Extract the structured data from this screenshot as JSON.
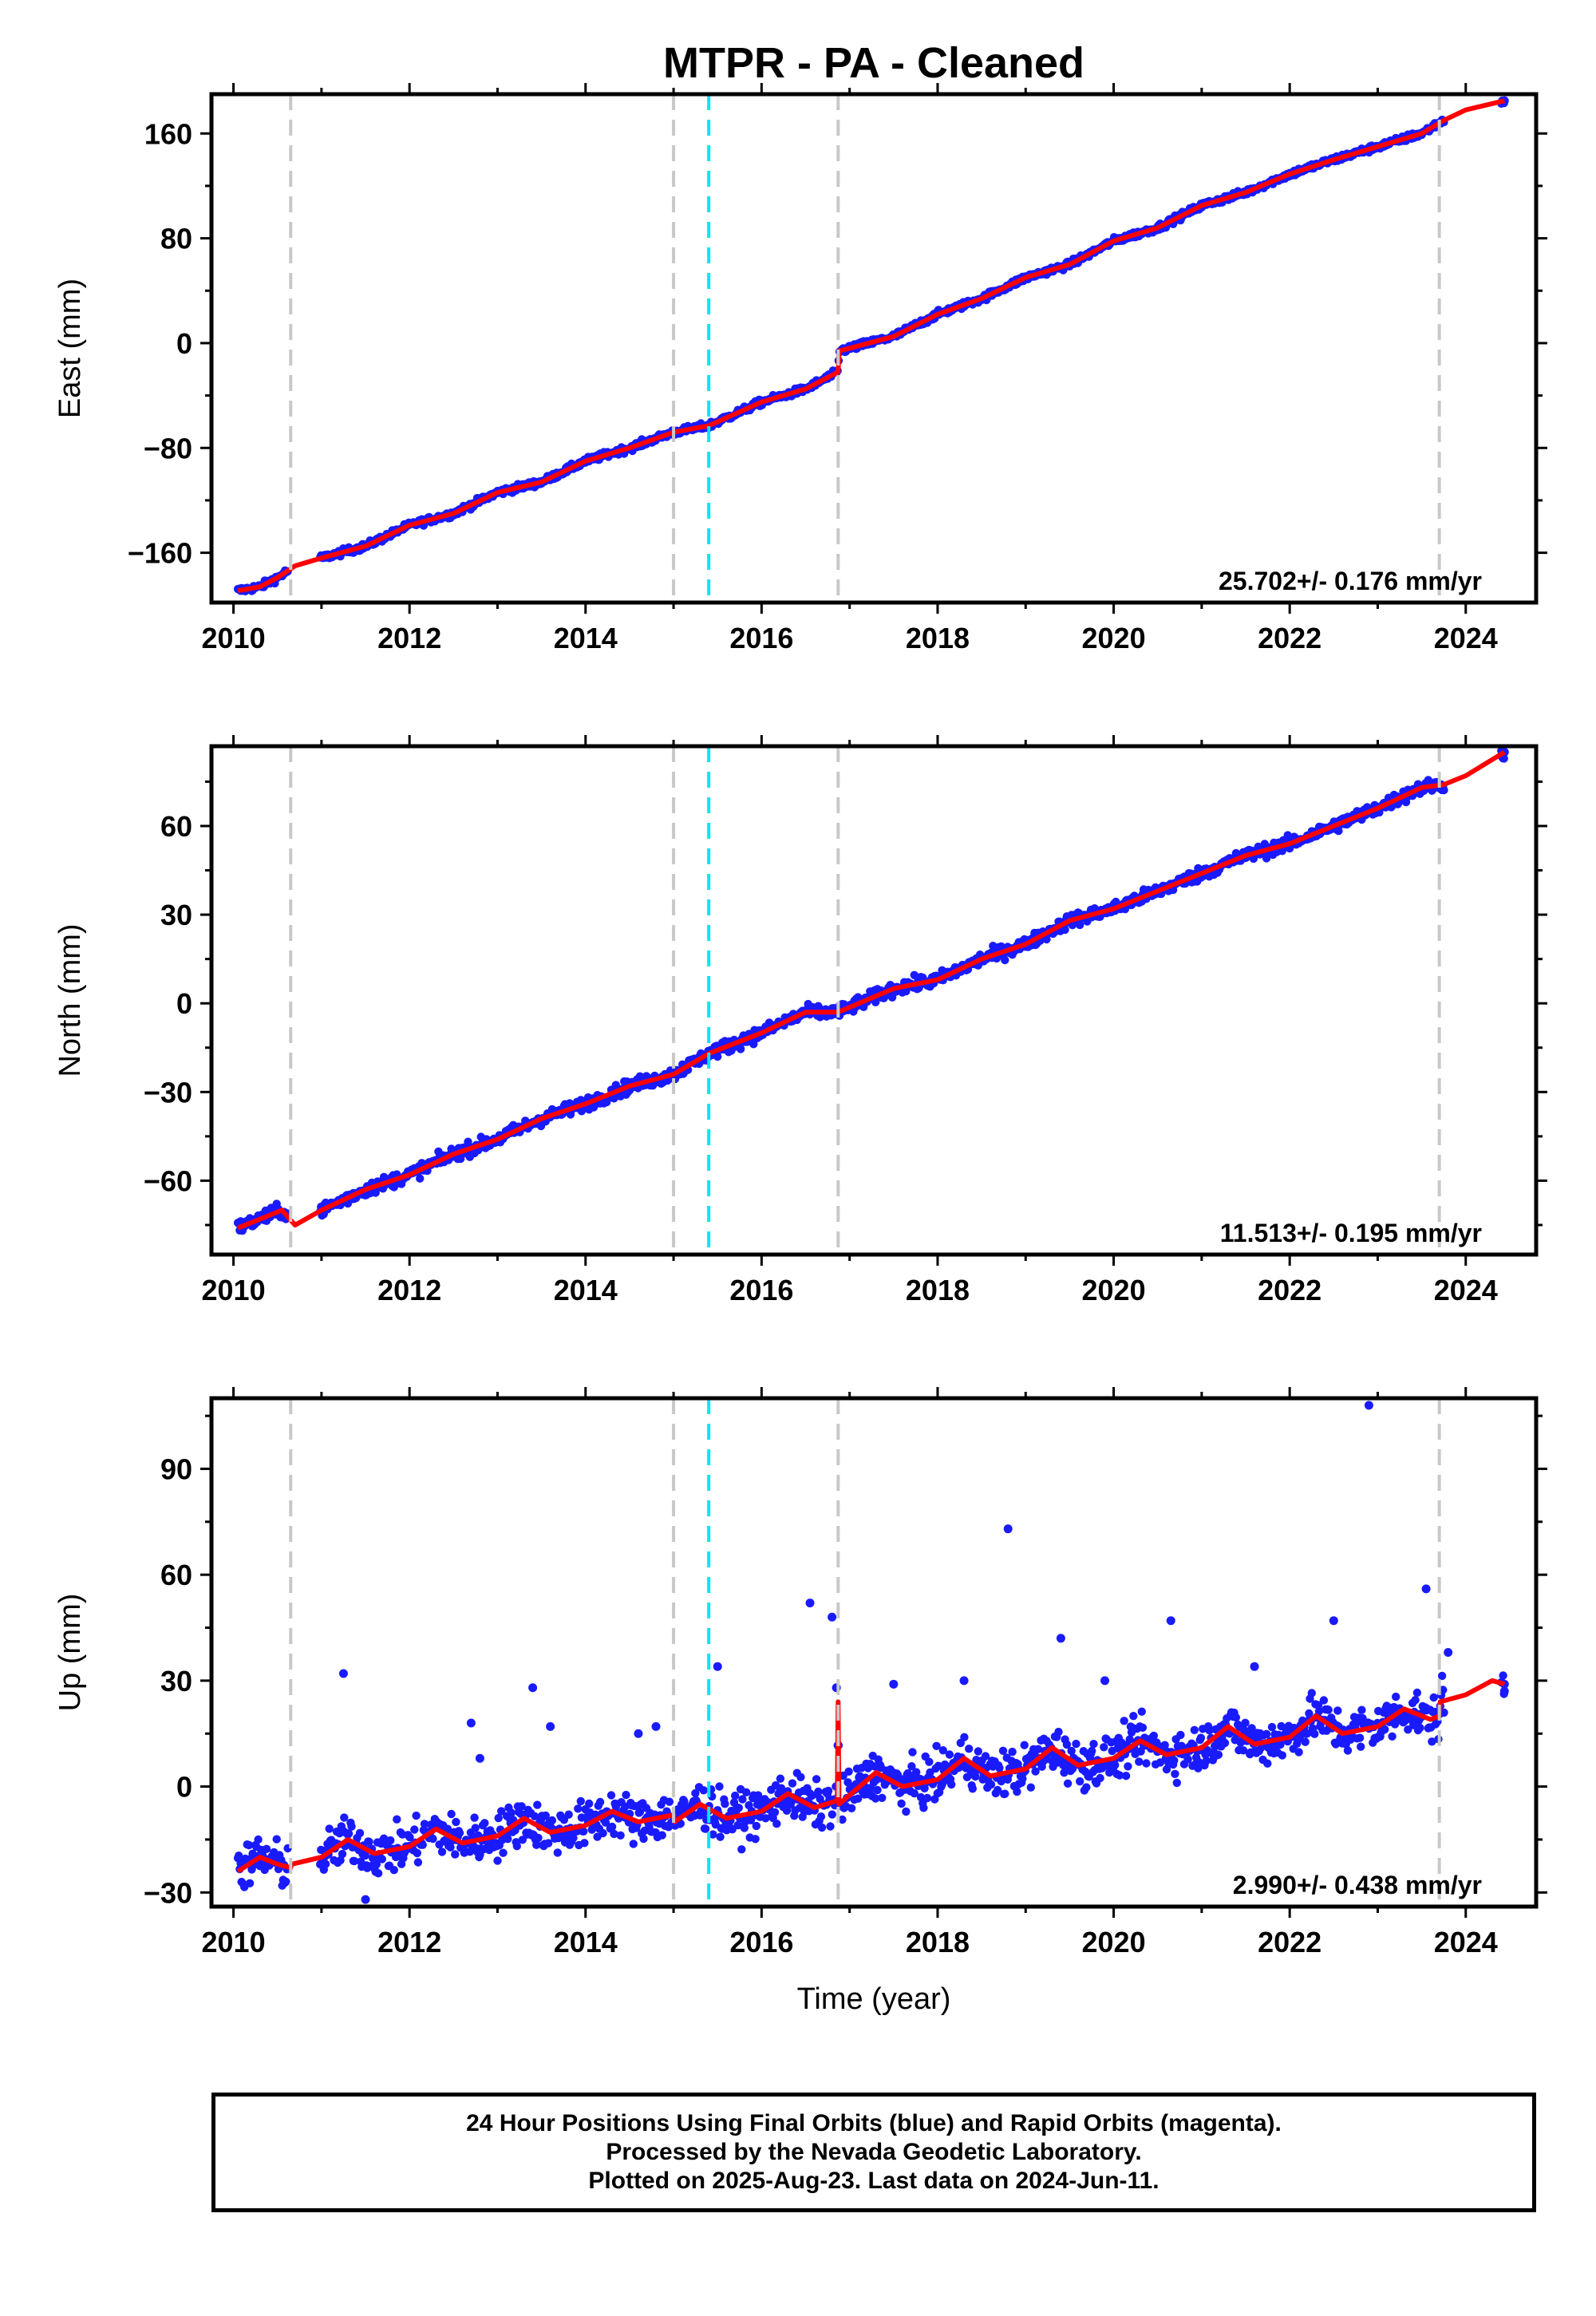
{
  "title": "MTPR  - PA - Cleaned",
  "xlabel": "Time (year)",
  "footer": {
    "line1": "24 Hour Positions Using Final Orbits (blue) and Rapid Orbits (magenta).",
    "line2": "Processed by the Nevada Geodetic Laboratory.",
    "line3": "Plotted on 2025-Aug-23. Last data on 2024-Jun-11."
  },
  "colors": {
    "data_points": "#1a1aff",
    "model_line": "#ff0000",
    "equipment_change_lines": "#c8c8c8",
    "earthquake_line": "#00e5ff",
    "frame": "#000000"
  },
  "chart_data": [
    {
      "type": "scatter",
      "panel": "east",
      "ylabel": "East (mm)",
      "xlim": [
        2009.75,
        2024.8
      ],
      "ylim": [
        -198,
        190
      ],
      "x_ticks": [
        2010,
        2012,
        2014,
        2016,
        2018,
        2020,
        2022,
        2024
      ],
      "y_ticks": [
        -160,
        -80,
        0,
        80,
        160
      ],
      "rate_label": "25.702+/- 0.176 mm/yr",
      "rate": 25.702,
      "series": [
        {
          "role": "daily positions",
          "x_range": [
            2010.05,
            2024.44
          ],
          "color": "#1a1aff"
        },
        {
          "role": "model fit",
          "color": "#ff0000",
          "x": [
            2010.05,
            2010.3,
            2010.5,
            2010.7,
            2011.0,
            2011.5,
            2012.0,
            2012.5,
            2013.0,
            2013.5,
            2014.0,
            2014.5,
            2015.0,
            2015.4,
            2016.0,
            2016.5,
            2016.87,
            2016.88,
            2017.5,
            2018.0,
            2018.5,
            2019.0,
            2019.5,
            2020.0,
            2020.5,
            2021.0,
            2021.5,
            2022.0,
            2022.5,
            2023.0,
            2023.5,
            2023.75,
            2024.0,
            2024.44
          ],
          "y": [
            -189,
            -186,
            -179,
            -170,
            -164,
            -155,
            -139,
            -130,
            -114,
            -106,
            -90,
            -80,
            -68,
            -63,
            -45,
            -35,
            -22,
            -6,
            5,
            22,
            34,
            50,
            60,
            78,
            88,
            105,
            115,
            129,
            140,
            150,
            160,
            170,
            178,
            185
          ]
        }
      ],
      "equipment_changes": [
        2010.65,
        2015.0,
        2016.87,
        2023.7
      ],
      "earthquake": [
        2015.4
      ]
    },
    {
      "type": "scatter",
      "panel": "north",
      "ylabel": "North (mm)",
      "xlim": [
        2009.75,
        2024.8
      ],
      "ylim": [
        -85,
        87
      ],
      "x_ticks": [
        2010,
        2012,
        2014,
        2016,
        2018,
        2020,
        2022,
        2024
      ],
      "y_ticks": [
        -60,
        -30,
        0,
        30,
        60
      ],
      "rate_label": "11.513+/- 0.195 mm/yr",
      "rate": 11.513,
      "series": [
        {
          "role": "daily positions",
          "x_range": [
            2010.05,
            2024.44
          ],
          "color": "#1a1aff"
        },
        {
          "role": "model fit",
          "color": "#ff0000",
          "x": [
            2010.05,
            2010.3,
            2010.55,
            2010.7,
            2011.0,
            2011.5,
            2012.0,
            2012.5,
            2013.0,
            2013.5,
            2014.0,
            2014.5,
            2015.0,
            2015.4,
            2016.0,
            2016.5,
            2016.87,
            2017.5,
            2018.0,
            2018.5,
            2019.0,
            2019.5,
            2020.0,
            2020.5,
            2021.0,
            2021.5,
            2022.0,
            2022.5,
            2023.0,
            2023.5,
            2023.75,
            2024.0,
            2024.44
          ],
          "y": [
            -76,
            -73,
            -70,
            -75,
            -70,
            -63,
            -58,
            -51,
            -46,
            -39,
            -34,
            -28,
            -24,
            -17,
            -10,
            -3,
            -3,
            5,
            8,
            15,
            20,
            28,
            32,
            38,
            44,
            50,
            54,
            60,
            66,
            73,
            74,
            77,
            85
          ]
        }
      ],
      "equipment_changes": [
        2010.65,
        2015.0,
        2016.87,
        2023.7
      ],
      "earthquake": [
        2015.4
      ]
    },
    {
      "type": "scatter",
      "panel": "up",
      "ylabel": "Up (mm)",
      "xlim": [
        2009.75,
        2024.8
      ],
      "ylim": [
        -34,
        110
      ],
      "x_ticks": [
        2010,
        2012,
        2014,
        2016,
        2018,
        2020,
        2022,
        2024
      ],
      "y_ticks": [
        -30,
        0,
        30,
        60,
        90
      ],
      "rate_label": "2.990+/- 0.438 mm/yr",
      "rate": 2.99,
      "series": [
        {
          "role": "daily positions",
          "x_range": [
            2010.05,
            2024.44
          ],
          "color": "#1a1aff",
          "outliers": [
            [
              2011.25,
              32
            ],
            [
              2012.7,
              18
            ],
            [
              2012.8,
              8
            ],
            [
              2013.4,
              28
            ],
            [
              2013.6,
              17
            ],
            [
              2014.6,
              15
            ],
            [
              2014.8,
              17
            ],
            [
              2015.5,
              34
            ],
            [
              2016.55,
              52
            ],
            [
              2016.8,
              48
            ],
            [
              2016.85,
              28
            ],
            [
              2017.5,
              29
            ],
            [
              2018.3,
              30
            ],
            [
              2018.8,
              73
            ],
            [
              2019.4,
              42
            ],
            [
              2019.9,
              30
            ],
            [
              2020.65,
              47
            ],
            [
              2021.6,
              34
            ],
            [
              2022.5,
              47
            ],
            [
              2022.9,
              108
            ],
            [
              2023.55,
              56
            ],
            [
              2023.8,
              38
            ],
            [
              2024.44,
              27
            ],
            [
              2011.5,
              -32
            ]
          ]
        },
        {
          "role": "model fit",
          "color": "#ff0000",
          "x": [
            2010.05,
            2010.3,
            2010.5,
            2010.65,
            2010.66,
            2011.0,
            2011.3,
            2011.6,
            2012.0,
            2012.3,
            2012.6,
            2013.0,
            2013.3,
            2013.6,
            2014.0,
            2014.3,
            2014.6,
            2015.0,
            2015.01,
            2015.3,
            2015.6,
            2016.0,
            2016.3,
            2016.6,
            2016.86,
            2016.87,
            2016.88,
            2017.3,
            2017.6,
            2018.0,
            2018.3,
            2018.6,
            2019.0,
            2019.3,
            2019.6,
            2020.0,
            2020.3,
            2020.6,
            2021.0,
            2021.3,
            2021.6,
            2022.0,
            2022.3,
            2022.6,
            2023.0,
            2023.3,
            2023.6,
            2023.7,
            2023.71,
            2024.0,
            2024.3,
            2024.44
          ],
          "y": [
            -24,
            -20,
            -22,
            -23,
            -22,
            -20,
            -15,
            -19,
            -17,
            -12,
            -16,
            -14,
            -9,
            -13,
            -11,
            -7,
            -10,
            -8,
            -10,
            -5,
            -9,
            -7,
            -2,
            -6,
            -4,
            24,
            -5,
            4,
            0,
            2,
            8,
            3,
            5,
            11,
            6,
            8,
            13,
            9,
            11,
            17,
            12,
            14,
            20,
            15,
            17,
            22,
            19,
            20,
            24,
            26,
            30,
            29
          ]
        }
      ],
      "equipment_changes": [
        2010.65,
        2015.0,
        2016.87,
        2023.7
      ],
      "earthquake": [
        2015.4
      ]
    }
  ]
}
